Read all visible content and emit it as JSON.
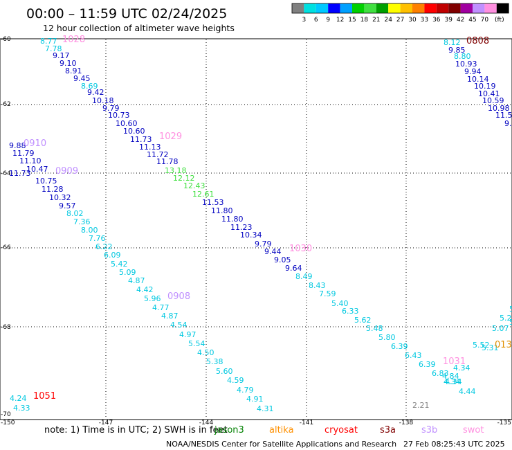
{
  "header": {
    "title": "00:00 – 11:59 UTC 02/24/2025",
    "subtitle": "12 hour collection of altimeter wave heights"
  },
  "color_scale": {
    "colors": [
      "#808080",
      "#00e0e0",
      "#00c8ff",
      "#0000ff",
      "#00a0ff",
      "#00d000",
      "#40e040",
      "#00a000",
      "#ffff00",
      "#ffc000",
      "#ff8000",
      "#ff0000",
      "#c00000",
      "#800000",
      "#a000a0",
      "#c090ff",
      "#ff90e0",
      "#000000"
    ],
    "labels": [
      "3",
      "6",
      "9",
      "12",
      "15",
      "18",
      "21",
      "24",
      "27",
      "30",
      "33",
      "36",
      "39",
      "42",
      "45",
      "70",
      "(ft)"
    ]
  },
  "map": {
    "lon_ticks": [
      "-150",
      "-147",
      "-144",
      "-141",
      "-138",
      "-135"
    ],
    "lat_ticks": [
      "-60",
      "-62",
      "-64",
      "-66",
      "-68",
      "-70"
    ]
  },
  "observations": [
    {
      "v": "8.77",
      "c": "#00c8e0"
    },
    {
      "v": "7.78",
      "c": "#00c8e0"
    },
    {
      "v": "9.17",
      "c": "#0000c0"
    },
    {
      "v": "9.10",
      "c": "#0000c0"
    },
    {
      "v": "8.91",
      "c": "#0000c0"
    },
    {
      "v": "9.45",
      "c": "#0000c0"
    },
    {
      "v": "8.69",
      "c": "#00c8e0"
    },
    {
      "v": "9.42",
      "c": "#0000c0"
    },
    {
      "v": "10.18",
      "c": "#0000c0"
    },
    {
      "v": "9.79",
      "c": "#0000c0"
    },
    {
      "v": "10.73",
      "c": "#0000c0"
    },
    {
      "v": "10.60",
      "c": "#0000c0"
    },
    {
      "v": "10.60",
      "c": "#0000c0"
    },
    {
      "v": "11.73",
      "c": "#0000c0"
    },
    {
      "v": "11.13",
      "c": "#0000c0"
    },
    {
      "v": "11.72",
      "c": "#0000c0"
    },
    {
      "v": "11.78",
      "c": "#0000c0"
    },
    {
      "v": "13.18",
      "c": "#40e040"
    },
    {
      "v": "12.12",
      "c": "#40e040"
    },
    {
      "v": "12.43",
      "c": "#40e040"
    },
    {
      "v": "12.61",
      "c": "#40e040"
    },
    {
      "v": "11.53",
      "c": "#0000c0"
    },
    {
      "v": "11.80",
      "c": "#0000c0"
    },
    {
      "v": "11.80",
      "c": "#0000c0"
    },
    {
      "v": "11.23",
      "c": "#0000c0"
    },
    {
      "v": "10.34",
      "c": "#0000c0"
    },
    {
      "v": "9.79",
      "c": "#0000c0"
    },
    {
      "v": "9.44",
      "c": "#0000c0"
    },
    {
      "v": "9.05",
      "c": "#0000c0"
    },
    {
      "v": "9.64",
      "c": "#0000c0"
    },
    {
      "v": "8.49",
      "c": "#00c8e0"
    },
    {
      "v": "8.43",
      "c": "#00c8e0"
    },
    {
      "v": "7.59",
      "c": "#00c8e0"
    },
    {
      "v": "5.40",
      "c": "#00c8e0"
    },
    {
      "v": "6.33",
      "c": "#00c8e0"
    },
    {
      "v": "5.62",
      "c": "#00c8e0"
    },
    {
      "v": "5.48",
      "c": "#00c8e0"
    },
    {
      "v": "5.80",
      "c": "#00c8e0"
    },
    {
      "v": "6.39",
      "c": "#00c8e0"
    },
    {
      "v": "6.43",
      "c": "#00c8e0"
    },
    {
      "v": "6.39",
      "c": "#00c8e0"
    },
    {
      "v": "6.83",
      "c": "#00c8e0"
    },
    {
      "v": "4.84",
      "c": "#00c8e0"
    },
    {
      "v": "4.34",
      "c": "#00c8e0"
    },
    {
      "v": "4.34",
      "c": "#00c8e0"
    },
    {
      "v": "4.44",
      "c": "#00c8e0"
    },
    {
      "v": "9.88",
      "c": "#0000c0"
    },
    {
      "v": "11.79",
      "c": "#0000c0"
    },
    {
      "v": "11.10",
      "c": "#0000c0"
    },
    {
      "v": "10.47",
      "c": "#0000c0"
    },
    {
      "v": "11.73",
      "c": "#0000c0"
    },
    {
      "v": "10.75",
      "c": "#0000c0"
    },
    {
      "v": "11.28",
      "c": "#0000c0"
    },
    {
      "v": "10.32",
      "c": "#0000c0"
    },
    {
      "v": "9.57",
      "c": "#0000c0"
    },
    {
      "v": "8.02",
      "c": "#00c8e0"
    },
    {
      "v": "7.36",
      "c": "#00c8e0"
    },
    {
      "v": "8.00",
      "c": "#00c8e0"
    },
    {
      "v": "7.76",
      "c": "#00c8e0"
    },
    {
      "v": "6.22",
      "c": "#00c8e0"
    },
    {
      "v": "6.09",
      "c": "#00c8e0"
    },
    {
      "v": "5.42",
      "c": "#00c8e0"
    },
    {
      "v": "5.09",
      "c": "#00c8e0"
    },
    {
      "v": "4.87",
      "c": "#00c8e0"
    },
    {
      "v": "4.42",
      "c": "#00c8e0"
    },
    {
      "v": "5.96",
      "c": "#00c8e0"
    },
    {
      "v": "4.77",
      "c": "#00c8e0"
    },
    {
      "v": "4.87",
      "c": "#00c8e0"
    },
    {
      "v": "4.54",
      "c": "#00c8e0"
    },
    {
      "v": "4.97",
      "c": "#00c8e0"
    },
    {
      "v": "5.54",
      "c": "#00c8e0"
    },
    {
      "v": "4.50",
      "c": "#00c8e0"
    },
    {
      "v": "5.38",
      "c": "#00c8e0"
    },
    {
      "v": "5.60",
      "c": "#00c8e0"
    },
    {
      "v": "4.59",
      "c": "#00c8e0"
    },
    {
      "v": "4.79",
      "c": "#00c8e0"
    },
    {
      "v": "4.91",
      "c": "#00c8e0"
    },
    {
      "v": "4.31",
      "c": "#00c8e0"
    },
    {
      "v": "8.12",
      "c": "#00c8e0"
    },
    {
      "v": "9.85",
      "c": "#0000c0"
    },
    {
      "v": "8.80",
      "c": "#00c8e0"
    },
    {
      "v": "10.93",
      "c": "#0000c0"
    },
    {
      "v": "9.94",
      "c": "#0000c0"
    },
    {
      "v": "10.14",
      "c": "#0000c0"
    },
    {
      "v": "10.19",
      "c": "#0000c0"
    },
    {
      "v": "10.41",
      "c": "#0000c0"
    },
    {
      "v": "10.59",
      "c": "#0000c0"
    },
    {
      "v": "10.98",
      "c": "#0000c0"
    },
    {
      "v": "11.5",
      "c": "#0000c0"
    },
    {
      "v": "9.",
      "c": "#0000c0"
    },
    {
      "v": "4.24",
      "c": "#00c8e0"
    },
    {
      "v": "4.33",
      "c": "#00c8e0"
    },
    {
      "v": "2.21",
      "c": "#808080"
    },
    {
      "v": "5.1",
      "c": "#00c8e0"
    },
    {
      "v": "5.27",
      "c": "#00c8e0"
    },
    {
      "v": "5.07",
      "c": "#00c8e0"
    },
    {
      "v": "5.31",
      "c": "#00c8e0"
    },
    {
      "v": "5.52",
      "c": "#00c8e0"
    },
    {
      "v": "4.34",
      "c": "#00c8e0"
    },
    {
      "v": "5",
      "c": "#00c8e0"
    }
  ],
  "time_labels": [
    {
      "t": "1028",
      "c": "#ff90e0"
    },
    {
      "t": "1029",
      "c": "#ff90e0"
    },
    {
      "t": "1030",
      "c": "#ff90e0"
    },
    {
      "t": "1031",
      "c": "#ff90e0"
    },
    {
      "t": "0910",
      "c": "#c090ff"
    },
    {
      "t": "0909",
      "c": "#c090ff"
    },
    {
      "t": "0908",
      "c": "#c090ff"
    },
    {
      "t": "0808",
      "c": "#800000"
    },
    {
      "t": "1051",
      "c": "#ff0000"
    },
    {
      "t": "013",
      "c": "#e09000"
    }
  ],
  "footer": {
    "note": "note:  1) Time is in UTC; 2) SWH is in feet",
    "satellites": [
      {
        "name": "jason3",
        "c": "#008000"
      },
      {
        "name": "altika",
        "c": "#ff9000"
      },
      {
        "name": "cryosat",
        "c": "#ff0000"
      },
      {
        "name": "s3a",
        "c": "#800000"
      },
      {
        "name": "s3b",
        "c": "#c090ff"
      },
      {
        "name": "swot",
        "c": "#ff90e0"
      }
    ],
    "credit": "NOAA/NESDIS Center for Satellite Applications and Research",
    "timestamp": "27 Feb 08:25:43 UTC 2025"
  }
}
